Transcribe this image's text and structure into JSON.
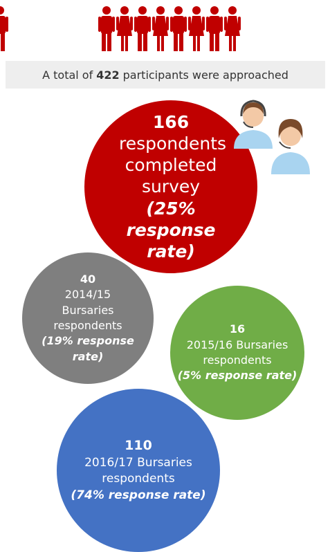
{
  "banner": {
    "text_before": "A total of",
    "count": 422,
    "text_after": "participants were approached"
  },
  "circles": [
    {
      "count": 166,
      "label": "respondents completed survey",
      "rate": "(25% response rate)"
    },
    {
      "count": 40,
      "label": "2014/15 Bursaries respondents",
      "rate": "(19% response rate)"
    },
    {
      "count": 16,
      "label": "2015/16 Bursaries respondents",
      "rate": "(5% response rate)"
    },
    {
      "count": 110,
      "label": "2016/17 Bursaries respondents",
      "rate": "(74% response rate)"
    }
  ]
}
